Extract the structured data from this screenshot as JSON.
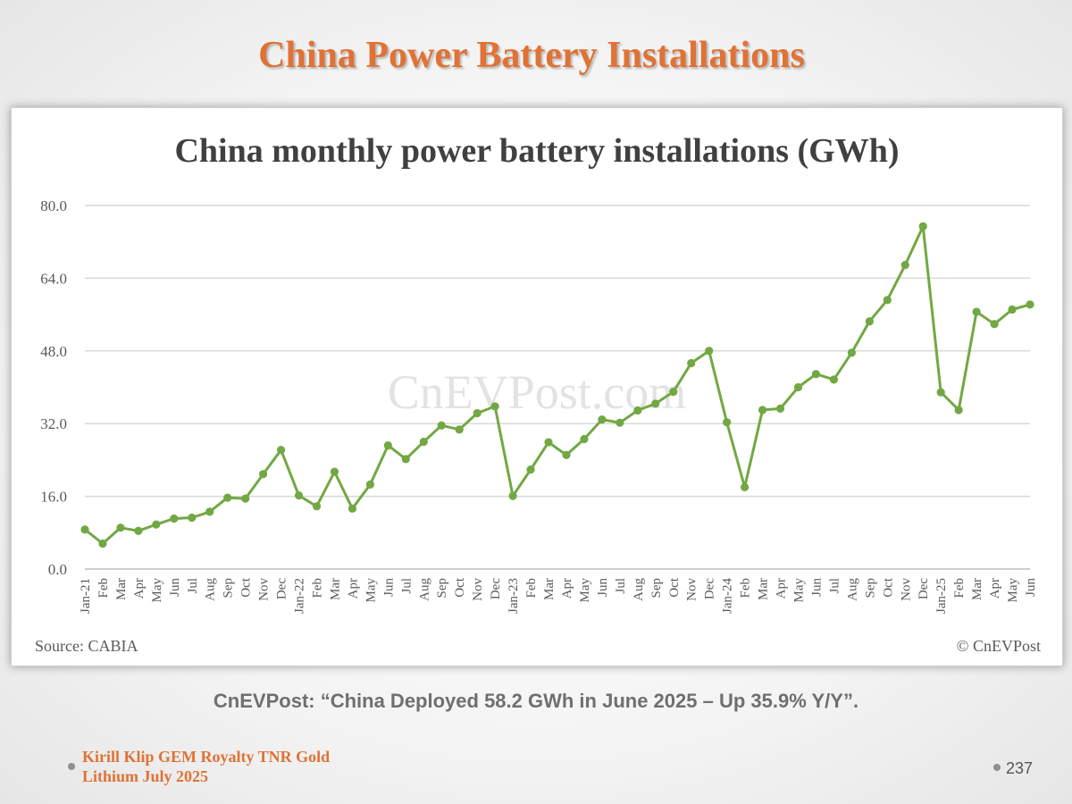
{
  "slide": {
    "title": "China Power Battery Installations",
    "caption": "CnEVPost: “China Deployed 58.2 GWh in June 2025 – Up 35.9% Y/Y”.",
    "footer_line1": "Kirill Klip GEM Royalty TNR Gold",
    "footer_line2": "Lithium July 2025",
    "page_number": "237"
  },
  "colors": {
    "title": "#e07235",
    "series": "#72a843",
    "grid": "#d9d9d9",
    "axis_text": "#595959",
    "chart_title": "#404040"
  },
  "chart_data": {
    "type": "line",
    "title": "China monthly power battery installations (GWh)",
    "source": "Source: CABIA",
    "copyright": "© CnEVPost",
    "watermark": "CnEVPost.com",
    "ylim": [
      0,
      80
    ],
    "yticks": [
      "80.0",
      "64.0",
      "48.0",
      "32.0",
      "16.0",
      "0.0"
    ],
    "grid": "horizontal",
    "categories": [
      "Jan-21",
      "Feb",
      "Mar",
      "Apr",
      "May",
      "Jun",
      "Jul",
      "Aug",
      "Sep",
      "Oct",
      "Nov",
      "Dec",
      "Jan-22",
      "Feb",
      "Mar",
      "Apr",
      "May",
      "Jun",
      "Jul",
      "Aug",
      "Sep",
      "Oct",
      "Nov",
      "Dec",
      "Jan-23",
      "Feb",
      "Mar",
      "Apr",
      "May",
      "Jun",
      "Jul",
      "Aug",
      "Sep",
      "Oct",
      "Nov",
      "Dec",
      "Jan-24",
      "Feb",
      "Mar",
      "Apr",
      "May",
      "Jun",
      "Jul",
      "Aug",
      "Sep",
      "Oct",
      "Nov",
      "Dec",
      "Jan-25",
      "Feb",
      "Mar",
      "Apr",
      "May",
      "Jun"
    ],
    "series": [
      {
        "values": [
          8.7,
          5.6,
          9.1,
          8.4,
          9.8,
          11.1,
          11.3,
          12.6,
          15.7,
          15.5,
          20.9,
          26.2,
          16.2,
          13.8,
          21.4,
          13.3,
          18.6,
          27.2,
          24.2,
          28.0,
          31.6,
          30.7,
          34.3,
          35.8,
          16.1,
          21.9,
          27.9,
          25.1,
          28.6,
          32.9,
          32.2,
          34.9,
          36.4,
          39.0,
          45.3,
          48.0,
          32.3,
          18.0,
          35.0,
          35.3,
          40.0,
          42.9,
          41.7,
          47.6,
          54.5,
          59.2,
          66.9,
          75.4,
          38.9,
          35.0,
          56.6,
          53.9,
          57.1,
          58.2
        ]
      }
    ]
  }
}
